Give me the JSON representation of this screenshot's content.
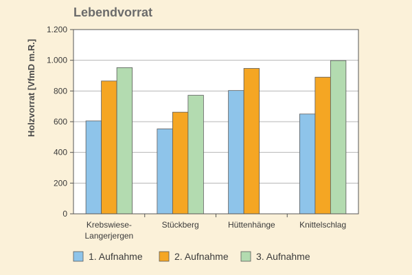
{
  "chart_data": {
    "type": "bar",
    "title": "Lebendvorrat",
    "ylabel": "Holzvorrat [VfmD m.R.]",
    "xlabel": "",
    "ylim": [
      0,
      1200
    ],
    "yticks": [
      {
        "value": 0,
        "label": "0"
      },
      {
        "value": 200,
        "label": "200"
      },
      {
        "value": 400,
        "label": "400"
      },
      {
        "value": 600,
        "label": "600"
      },
      {
        "value": 800,
        "label": "800"
      },
      {
        "value": 1000,
        "label": "1.000"
      },
      {
        "value": 1200,
        "label": "1.200"
      }
    ],
    "categories": [
      {
        "lines": [
          "Krebswiese-",
          "Langerjergen"
        ]
      },
      {
        "lines": [
          "Stückberg"
        ]
      },
      {
        "lines": [
          "Hüttenhänge"
        ]
      },
      {
        "lines": [
          "Knittelschlag"
        ]
      }
    ],
    "series": [
      {
        "name": "1. Aufnahme",
        "color": "#8ec4ea",
        "values": [
          605,
          553,
          803,
          650
        ]
      },
      {
        "name": "2. Aufnahme",
        "color": "#f5a623",
        "values": [
          865,
          662,
          947,
          890
        ]
      },
      {
        "name": "3. Aufnahme",
        "color": "#b3dbb0",
        "values": [
          952,
          772,
          null,
          998
        ]
      }
    ],
    "legend_position": "bottom",
    "grid": "horizontal"
  }
}
